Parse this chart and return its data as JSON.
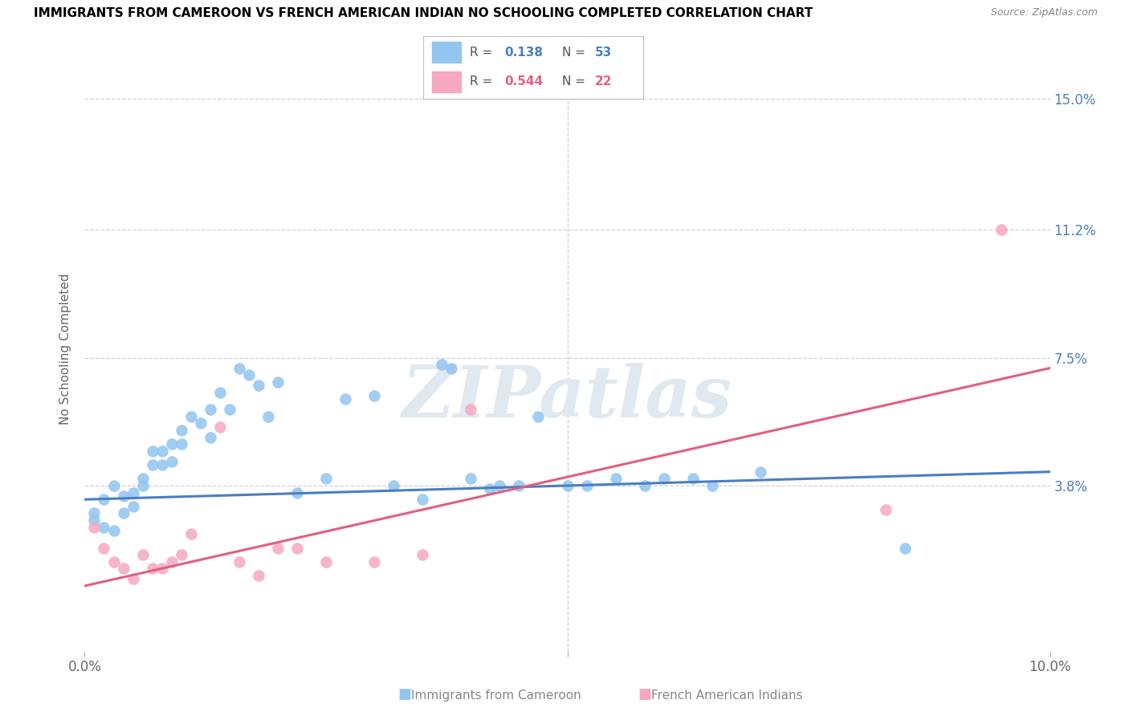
{
  "title": "IMMIGRANTS FROM CAMEROON VS FRENCH AMERICAN INDIAN NO SCHOOLING COMPLETED CORRELATION CHART",
  "source": "Source: ZipAtlas.com",
  "ylabel": "No Schooling Completed",
  "ytick_labels": [
    "15.0%",
    "11.2%",
    "7.5%",
    "3.8%"
  ],
  "ytick_values": [
    0.15,
    0.112,
    0.075,
    0.038
  ],
  "xlim": [
    0.0,
    0.1
  ],
  "ylim": [
    -0.01,
    0.165
  ],
  "series1_color": "#92c5f0",
  "series2_color": "#f5a8c0",
  "series1_label": "Immigrants from Cameroon",
  "series2_label": "French American Indians",
  "series1_R": "0.138",
  "series1_N": "53",
  "series2_R": "0.544",
  "series2_N": "22",
  "trend1_color": "#4a7fc1",
  "trend2_color": "#e06080",
  "watermark": "ZIPatlas",
  "series1_x": [
    0.001,
    0.001,
    0.002,
    0.002,
    0.003,
    0.003,
    0.004,
    0.004,
    0.005,
    0.005,
    0.006,
    0.006,
    0.007,
    0.007,
    0.008,
    0.008,
    0.009,
    0.009,
    0.01,
    0.01,
    0.011,
    0.012,
    0.013,
    0.013,
    0.014,
    0.015,
    0.016,
    0.017,
    0.018,
    0.019,
    0.02,
    0.022,
    0.025,
    0.027,
    0.03,
    0.032,
    0.035,
    0.037,
    0.038,
    0.04,
    0.042,
    0.043,
    0.045,
    0.047,
    0.05,
    0.052,
    0.055,
    0.058,
    0.06,
    0.063,
    0.065,
    0.07,
    0.085
  ],
  "series1_y": [
    0.03,
    0.028,
    0.034,
    0.026,
    0.038,
    0.025,
    0.035,
    0.03,
    0.036,
    0.032,
    0.04,
    0.038,
    0.048,
    0.044,
    0.048,
    0.044,
    0.05,
    0.045,
    0.054,
    0.05,
    0.058,
    0.056,
    0.052,
    0.06,
    0.065,
    0.06,
    0.072,
    0.07,
    0.067,
    0.058,
    0.068,
    0.036,
    0.04,
    0.063,
    0.064,
    0.038,
    0.034,
    0.073,
    0.072,
    0.04,
    0.037,
    0.038,
    0.038,
    0.058,
    0.038,
    0.038,
    0.04,
    0.038,
    0.04,
    0.04,
    0.038,
    0.042,
    0.02
  ],
  "series2_x": [
    0.001,
    0.002,
    0.003,
    0.004,
    0.005,
    0.006,
    0.007,
    0.008,
    0.009,
    0.01,
    0.011,
    0.014,
    0.016,
    0.018,
    0.02,
    0.022,
    0.025,
    0.03,
    0.035,
    0.04,
    0.083,
    0.095
  ],
  "series2_y": [
    0.026,
    0.02,
    0.016,
    0.014,
    0.011,
    0.018,
    0.014,
    0.014,
    0.016,
    0.018,
    0.024,
    0.055,
    0.016,
    0.012,
    0.02,
    0.02,
    0.016,
    0.016,
    0.018,
    0.06,
    0.031,
    0.112
  ],
  "trend1_start_y": 0.034,
  "trend1_end_y": 0.042,
  "trend2_start_y": 0.009,
  "trend2_end_y": 0.072
}
